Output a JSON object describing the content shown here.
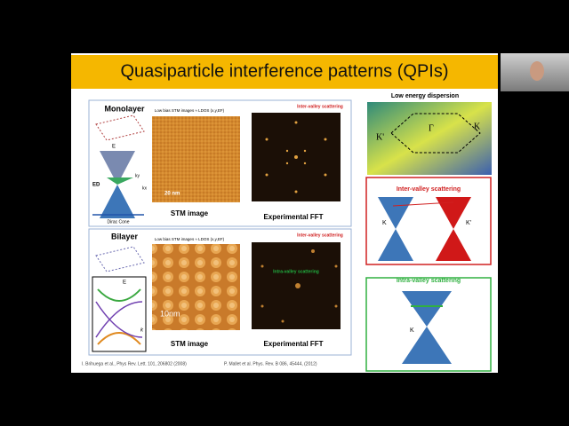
{
  "slide": {
    "title": "Quasiparticle interference patterns (QPIs)",
    "monolayer": {
      "label": "Monolayer",
      "caption": "Low bias STM images ≈ LDOS (x,y,EF)",
      "fft_note": "Inter-valley scattering",
      "scale": "20 nm",
      "stm_label": "STM image",
      "fft_label": "Experimental FFT",
      "cone_label": "Dirac Cone",
      "e_axis": "E",
      "ed": "ED",
      "kx": "kx",
      "ky": "ky"
    },
    "bilayer": {
      "label": "Bilayer",
      "caption": "Low bias STM images ≈ LDOS (x,y,EF)",
      "fft_note": "Inter-valley scattering",
      "intra_note": "Intra-valley scattering",
      "scale": "10nm",
      "stm_label": "STM image",
      "fft_label": "Experimental FFT",
      "e_axis": "E",
      "k_axis": "k"
    },
    "dispersion": {
      "title": "Low energy dispersion",
      "k_prime": "K'",
      "gamma": "Γ",
      "k": "K"
    },
    "inter": {
      "title": "Inter-valley scattering",
      "k": "K",
      "k_prime": "K'"
    },
    "intra": {
      "title": "Intra-valley scattering",
      "k": "K"
    },
    "citations": [
      "I. Brihuega et al., Phys Rev. Lett. 101, 206802 (2008)",
      "P. Mallet et al. Phys. Rev. B 086, 45444, (2012)"
    ]
  }
}
